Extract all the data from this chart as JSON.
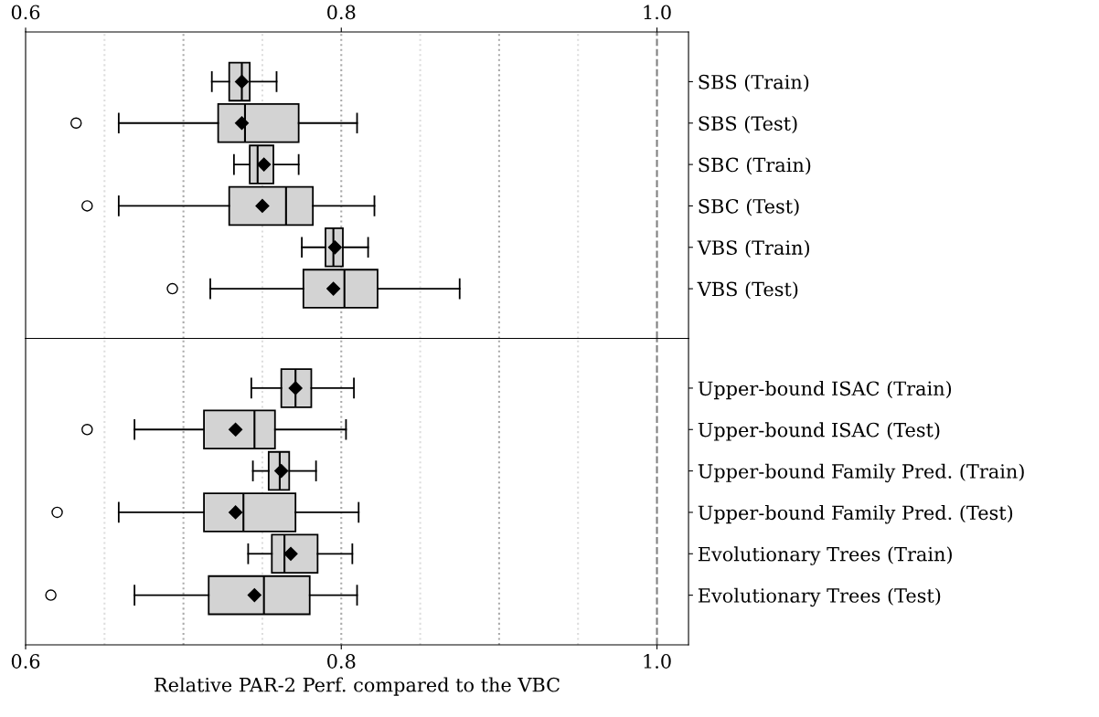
{
  "chart_data": [
    {
      "type": "box",
      "orientation": "horizontal",
      "color": "#d3d3d3",
      "categories": [
        "SBS (Train)",
        "SBS (Test)",
        "SBC (Train)",
        "SBC (Test)",
        "VBS (Train)",
        "VBS (Test)"
      ],
      "boxes": [
        {
          "low": 0.718,
          "q1": 0.729,
          "median": 0.737,
          "q3": 0.742,
          "high": 0.759,
          "mean": 0.737
        },
        {
          "low": 0.659,
          "q1": 0.722,
          "median": 0.739,
          "q3": 0.773,
          "high": 0.81,
          "mean": 0.737,
          "outliers": [
            0.632
          ]
        },
        {
          "low": 0.732,
          "q1": 0.742,
          "median": 0.747,
          "q3": 0.757,
          "high": 0.773,
          "mean": 0.751
        },
        {
          "low": 0.659,
          "q1": 0.729,
          "median": 0.765,
          "q3": 0.782,
          "high": 0.821,
          "mean": 0.75,
          "outliers": [
            0.639
          ]
        },
        {
          "low": 0.775,
          "q1": 0.79,
          "median": 0.795,
          "q3": 0.801,
          "high": 0.817,
          "mean": 0.796
        },
        {
          "low": 0.717,
          "q1": 0.776,
          "median": 0.802,
          "q3": 0.823,
          "high": 0.875,
          "mean": 0.795,
          "outliers": [
            0.693
          ]
        }
      ],
      "xlim": [
        0.6,
        1.02
      ],
      "xticks": [
        {
          "value": 0.6,
          "label": "0.6"
        },
        {
          "value": 0.8,
          "label": "0.8"
        },
        {
          "value": 1.0,
          "label": "1.0"
        }
      ],
      "ref_lines": [
        {
          "axis": "x",
          "value": 0.65,
          "color": "#dddddd",
          "line_style": "dotted"
        },
        {
          "axis": "x",
          "value": 0.7,
          "color": "#aaaaaa",
          "line_style": "dotted"
        },
        {
          "axis": "x",
          "value": 0.75,
          "color": "#dddddd",
          "line_style": "dotted"
        },
        {
          "axis": "x",
          "value": 0.8,
          "color": "#aaaaaa",
          "line_style": "dotted"
        },
        {
          "axis": "x",
          "value": 0.85,
          "color": "#dddddd",
          "line_style": "dotted"
        },
        {
          "axis": "x",
          "value": 0.9,
          "color": "#aaaaaa",
          "line_style": "dotted"
        },
        {
          "axis": "x",
          "value": 0.95,
          "color": "#dddddd",
          "line_style": "dotted"
        },
        {
          "axis": "x",
          "value": 1.0,
          "color": "#808080",
          "line_style": "dashed"
        }
      ]
    },
    {
      "type": "box",
      "orientation": "horizontal",
      "color": "#d3d3d3",
      "categories": [
        "Upper-bound ISAC (Train)",
        "Upper-bound ISAC (Test)",
        "Upper-bound Family Pred. (Train)",
        "Upper-bound Family Pred. (Test)",
        "Evolutionary Trees (Train)",
        "Evolutionary Trees (Test)"
      ],
      "boxes": [
        {
          "low": 0.743,
          "q1": 0.762,
          "median": 0.771,
          "q3": 0.781,
          "high": 0.808,
          "mean": 0.771
        },
        {
          "low": 0.669,
          "q1": 0.713,
          "median": 0.745,
          "q3": 0.758,
          "high": 0.803,
          "mean": 0.733,
          "outliers": [
            0.639
          ]
        },
        {
          "low": 0.744,
          "q1": 0.754,
          "median": 0.761,
          "q3": 0.767,
          "high": 0.784,
          "mean": 0.762
        },
        {
          "low": 0.659,
          "q1": 0.713,
          "median": 0.738,
          "q3": 0.771,
          "high": 0.811,
          "mean": 0.733,
          "outliers": [
            0.62
          ]
        },
        {
          "low": 0.741,
          "q1": 0.756,
          "median": 0.764,
          "q3": 0.785,
          "high": 0.807,
          "mean": 0.768
        },
        {
          "low": 0.669,
          "q1": 0.716,
          "median": 0.751,
          "q3": 0.78,
          "high": 0.81,
          "mean": 0.745,
          "outliers": [
            0.616
          ]
        }
      ],
      "xlim": [
        0.6,
        1.02
      ],
      "xticks": [
        {
          "value": 0.6,
          "label": "0.6"
        },
        {
          "value": 0.8,
          "label": "0.8"
        },
        {
          "value": 1.0,
          "label": "1.0"
        }
      ],
      "xlabel": "Relative PAR-2 Perf. compared to the VBC",
      "ref_lines": [
        {
          "axis": "x",
          "value": 0.65,
          "color": "#dddddd",
          "line_style": "dotted"
        },
        {
          "axis": "x",
          "value": 0.7,
          "color": "#aaaaaa",
          "line_style": "dotted"
        },
        {
          "axis": "x",
          "value": 0.75,
          "color": "#dddddd",
          "line_style": "dotted"
        },
        {
          "axis": "x",
          "value": 0.8,
          "color": "#aaaaaa",
          "line_style": "dotted"
        },
        {
          "axis": "x",
          "value": 0.85,
          "color": "#dddddd",
          "line_style": "dotted"
        },
        {
          "axis": "x",
          "value": 0.9,
          "color": "#aaaaaa",
          "line_style": "dotted"
        },
        {
          "axis": "x",
          "value": 0.95,
          "color": "#dddddd",
          "line_style": "dotted"
        },
        {
          "axis": "x",
          "value": 1.0,
          "color": "#808080",
          "line_style": "dashed"
        }
      ]
    }
  ]
}
